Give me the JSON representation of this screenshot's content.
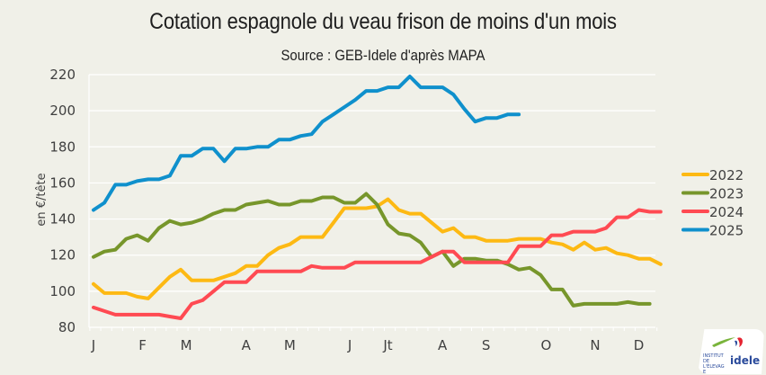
{
  "title": "Cotation espagnole du veau frison de moins d'un mois",
  "subtitle": "Source : GEB-Idele d'après MAPA",
  "logo": {
    "text": "idele",
    "small_text": "INSTITUT DE L'ÉLEVAGE"
  },
  "chart_data": {
    "type": "line",
    "title": "Cotation espagnole du veau frison de moins d'un mois",
    "subtitle": "Source : GEB-Idele d'après MAPA",
    "xlabel": "",
    "ylabel": "en €/tête",
    "ylim": [
      80,
      220
    ],
    "yticks": [
      80,
      100,
      120,
      140,
      160,
      180,
      200,
      220
    ],
    "x_unit": "week",
    "x_range": [
      1,
      53
    ],
    "month_labels": [
      "J",
      "F",
      "M",
      "A",
      "M",
      "J",
      "Jt",
      "A",
      "S",
      "O",
      "N",
      "D"
    ],
    "month_label_weeks": [
      1,
      5.5,
      9.5,
      15,
      19,
      24.5,
      28,
      33,
      37,
      42.5,
      47,
      51
    ],
    "grid": true,
    "legend_position": "right",
    "series": [
      {
        "name": "2022",
        "color": "#fdb913",
        "values": [
          104,
          99,
          99,
          99,
          97,
          96,
          102,
          108,
          112,
          106,
          106,
          106,
          108,
          110,
          114,
          114,
          120,
          124,
          126,
          130,
          130,
          130,
          138,
          146,
          146,
          146,
          147,
          151,
          145,
          143,
          143,
          138,
          133,
          135,
          130,
          130,
          128,
          128,
          128,
          129,
          129,
          129,
          127,
          126,
          123,
          127,
          123,
          124,
          121,
          120,
          118,
          118,
          115
        ]
      },
      {
        "name": "2023",
        "color": "#77962b",
        "values": [
          119,
          122,
          123,
          129,
          131,
          128,
          135,
          139,
          137,
          138,
          140,
          143,
          145,
          145,
          148,
          149,
          150,
          148,
          148,
          150,
          150,
          152,
          152,
          149,
          149,
          154,
          148,
          137,
          132,
          131,
          127,
          119,
          122,
          114,
          118,
          118,
          117,
          117,
          115,
          112,
          113,
          109,
          101,
          101,
          92,
          93,
          93,
          93,
          93,
          94,
          93,
          93
        ]
      },
      {
        "name": "2024",
        "color": "#ff4a52",
        "values": [
          91,
          89,
          87,
          87,
          87,
          87,
          87,
          86,
          85,
          93,
          95,
          100,
          105,
          105,
          105,
          111,
          111,
          111,
          111,
          111,
          114,
          113,
          113,
          113,
          116,
          116,
          116,
          116,
          116,
          116,
          116,
          119,
          122,
          122,
          116,
          116,
          116,
          116,
          116,
          125,
          125,
          125,
          131,
          131,
          133,
          133,
          133,
          135,
          141,
          141,
          145,
          144,
          144
        ]
      },
      {
        "name": "2025",
        "color": "#0f90cc",
        "values": [
          145,
          149,
          159,
          159,
          161,
          162,
          162,
          164,
          175,
          175,
          179,
          179,
          172,
          179,
          179,
          180,
          180,
          184,
          184,
          186,
          187,
          194,
          198,
          202,
          206,
          211,
          211,
          213,
          213,
          219,
          213,
          213,
          213,
          209,
          201,
          194,
          196,
          196,
          198,
          198
        ]
      }
    ]
  }
}
